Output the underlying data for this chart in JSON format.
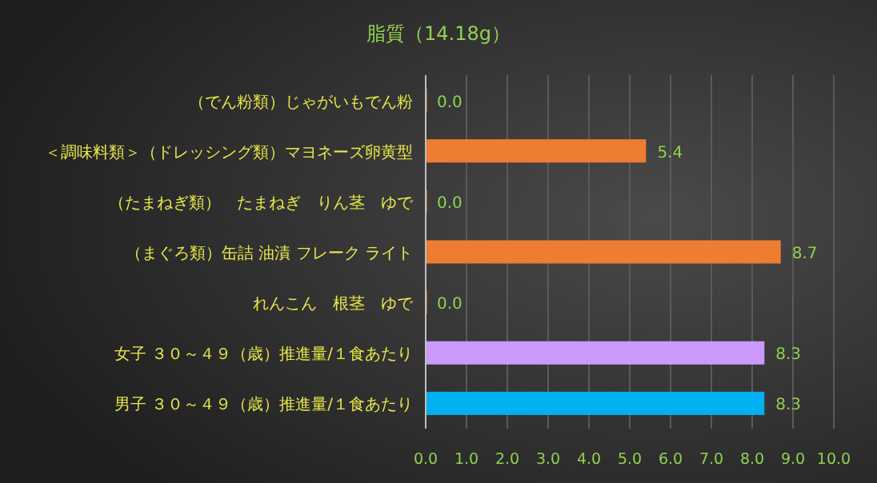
{
  "chart_data": {
    "type": "bar",
    "orientation": "horizontal",
    "title": "脂質（14.18g）",
    "categories": [
      "（でん粉類）じゃがいもでん粉",
      "＜調味料類＞（ドレッシング類）マヨネーズ卵黄型",
      "（たまねぎ類）　たまねぎ　りん茎　ゆで",
      "（まぐろ類）缶詰 油漬 フレーク ライト",
      "れんこん　根茎　ゆで",
      "女子 ３０～４９（歳）推進量/１食あたり",
      "男子 ３０～４９（歳）推進量/１食あたり"
    ],
    "values": [
      0,
      5.4,
      0,
      8.7,
      0,
      8.3,
      8.3
    ],
    "value_labels": [
      "0.0",
      "5.4",
      "0.0",
      "8.7",
      "0.0",
      "8.3",
      "8.3"
    ],
    "colors": [
      "#ed7d31",
      "#ed7d31",
      "#ed7d31",
      "#ed7d31",
      "#ed7d31",
      "#cc99ff",
      "#00b0f0"
    ],
    "xlim": [
      0,
      10
    ],
    "xticks": [
      {
        "value": 0,
        "label": "0.0"
      },
      {
        "value": 1,
        "label": "1.0"
      },
      {
        "value": 2,
        "label": "2.0"
      },
      {
        "value": 3,
        "label": "3.0"
      },
      {
        "value": 4,
        "label": "4.0"
      },
      {
        "value": 5,
        "label": "5.0"
      },
      {
        "value": 6,
        "label": "6.0"
      },
      {
        "value": 7,
        "label": "7.0"
      },
      {
        "value": 8,
        "label": "8.0"
      },
      {
        "value": 9,
        "label": "9.0"
      },
      {
        "value": 10,
        "label": "10.0"
      }
    ],
    "grid": "x"
  }
}
